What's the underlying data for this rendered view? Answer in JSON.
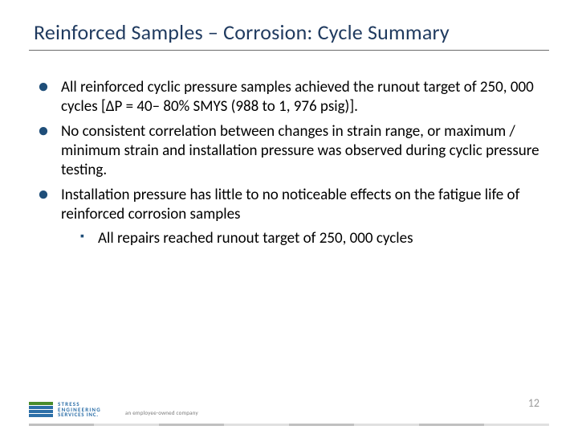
{
  "title": "Reinforced Samples – Corrosion: Cycle Summary",
  "bullets": [
    "All reinforced cyclic pressure samples achieved the runout target of 250, 000 cycles [ΔP = 40– 80% SMYS (988 to 1, 976 psig)].",
    "No consistent correlation between changes in strain range, or maximum / minimum strain and installation pressure was observed during cyclic pressure testing.",
    "Installation pressure has little to no noticeable effects on the fatigue life of reinforced corrosion samples"
  ],
  "sub_bullets": [
    "All repairs reached runout target of 250, 000 cycles"
  ],
  "logo": {
    "l1": "STRESS",
    "l2": "ENGINEERING",
    "l3": "SERVICES INC."
  },
  "tagline": "an employee-owned company",
  "page_number": "12",
  "colors": {
    "title": "#1f3a5f",
    "bullet_marker": "#1f4e79",
    "text": "#000000",
    "rule": "#6b6b6b",
    "logo_green": "#4a8c2a",
    "logo_blue": "#2c6fa8",
    "pagenum": "#9a9a9a",
    "tagline": "#7a7a7a",
    "footer_segments": [
      "#c0c0c0",
      "#e0e0e0",
      "#c0c0c0",
      "#e0e0e0",
      "#c0c0c0",
      "#e0e0e0",
      "#c0c0c0",
      "#e0e0e0"
    ]
  },
  "typography": {
    "title_fontsize": 26,
    "body_fontsize": 19,
    "line_height": 1.28
  }
}
